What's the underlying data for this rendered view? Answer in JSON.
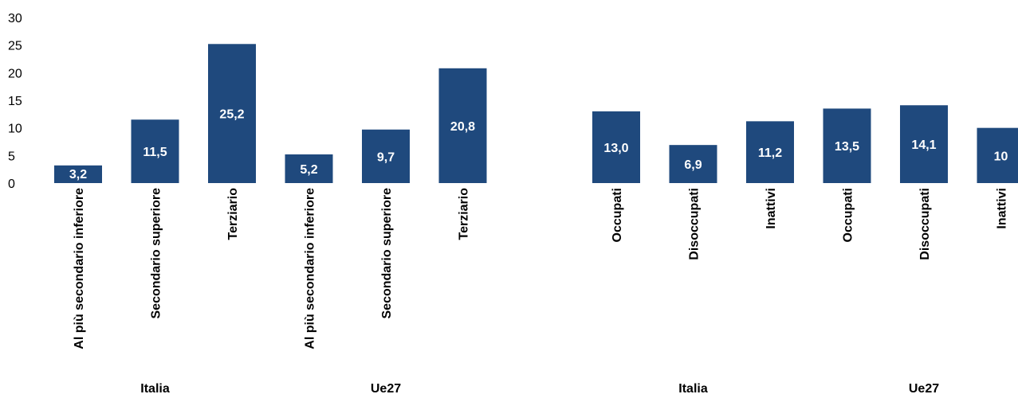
{
  "chart_data": {
    "type": "bar",
    "title": "",
    "xlabel": "",
    "ylabel": "",
    "ylim": [
      0,
      30
    ],
    "yticks": [
      0,
      5,
      10,
      15,
      20,
      25,
      30
    ],
    "grid": false,
    "bar_color": "#1f497d",
    "label_color": "#ffffff",
    "panels": [
      {
        "groups": [
          {
            "label": "Italia",
            "bars": [
              {
                "category": "Al più secondario inferiore",
                "value": 3.2,
                "label": "3,2"
              },
              {
                "category": "Secondario superiore",
                "value": 11.5,
                "label": "11,5"
              },
              {
                "category": "Terziario",
                "value": 25.2,
                "label": "25,2"
              }
            ]
          },
          {
            "label": "Ue27",
            "bars": [
              {
                "category": "Al più secondario inferiore",
                "value": 5.2,
                "label": "5,2"
              },
              {
                "category": "Secondario superiore",
                "value": 9.7,
                "label": "9,7"
              },
              {
                "category": "Terziario",
                "value": 20.8,
                "label": "20,8"
              }
            ]
          }
        ]
      },
      {
        "groups": [
          {
            "label": "Italia",
            "bars": [
              {
                "category": "Occupati",
                "value": 13.0,
                "label": "13,0"
              },
              {
                "category": "Disoccupati",
                "value": 6.9,
                "label": "6,9"
              },
              {
                "category": "Inattivi",
                "value": 11.2,
                "label": "11,2"
              }
            ]
          },
          {
            "label": "Ue27",
            "bars": [
              {
                "category": "Occupati",
                "value": 13.5,
                "label": "13,5"
              },
              {
                "category": "Disoccupati",
                "value": 14.1,
                "label": "14,1"
              },
              {
                "category": "Inattivi",
                "value": 10,
                "label": "10"
              }
            ]
          }
        ]
      }
    ]
  }
}
